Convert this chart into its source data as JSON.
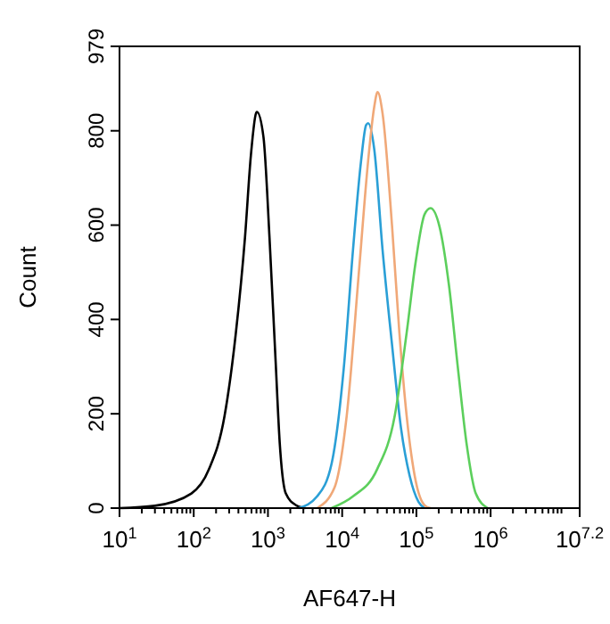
{
  "chart_data": {
    "type": "line",
    "xlabel": "AF647-H",
    "ylabel": "Count",
    "log": "x",
    "grid": false,
    "marker": "none",
    "line_style": "solid",
    "xlim": [
      10,
      15848932
    ],
    "ylim": [
      0,
      979
    ],
    "xticks": [
      {
        "value": 10,
        "label": "10$^{1}$"
      },
      {
        "value": 100,
        "label": "10$^{2}$"
      },
      {
        "value": 1000,
        "label": "10$^{3}$"
      },
      {
        "value": 10000,
        "label": "10$^{4}$"
      },
      {
        "value": 100000,
        "label": "10$^{5}$"
      },
      {
        "value": 1000000,
        "label": "10$^{6}$"
      },
      {
        "value": 15848932,
        "label": "10$^{7.2}$"
      }
    ],
    "yticks": [
      0,
      200,
      400,
      600,
      800,
      979
    ],
    "series": [
      {
        "color": "#000000",
        "x": [
          10,
          30,
          93,
          160,
          260,
          370,
          490,
          590,
          690,
          710,
          870,
          1050,
          1260,
          1450,
          1740,
          2400,
          3200
        ],
        "values": [
          0,
          5,
          31,
          82,
          195,
          372,
          573,
          749,
          837,
          840,
          787,
          573,
          321,
          132,
          31,
          6,
          0
        ]
      },
      {
        "color": "#2a9fd6",
        "x": [
          2600,
          4600,
          7200,
          10500,
          14000,
          18000,
          21000,
          22400,
          27000,
          35000,
          47000,
          62000,
          81000,
          107000,
          129000
        ],
        "values": [
          0,
          25,
          94,
          296,
          548,
          737,
          812,
          816,
          762,
          548,
          346,
          170,
          69,
          13,
          0
        ]
      },
      {
        "color": "#f0a878",
        "x": [
          4600,
          7900,
          11500,
          17000,
          22400,
          27000,
          30000,
          35000,
          47000,
          59000,
          74000,
          98000,
          129000,
          155000
        ],
        "values": [
          0,
          44,
          195,
          510,
          737,
          850,
          882,
          837,
          598,
          372,
          195,
          57,
          6,
          0
        ]
      },
      {
        "color": "#5ccf5c",
        "x": [
          7200,
          14000,
          29500,
          51000,
          74000,
          98000,
          129000,
          155000,
          204000,
          275000,
          363000,
          479000,
          631000,
          912000
        ],
        "values": [
          0,
          25,
          82,
          195,
          372,
          523,
          623,
          636,
          598,
          472,
          296,
          132,
          31,
          0
        ]
      }
    ]
  }
}
